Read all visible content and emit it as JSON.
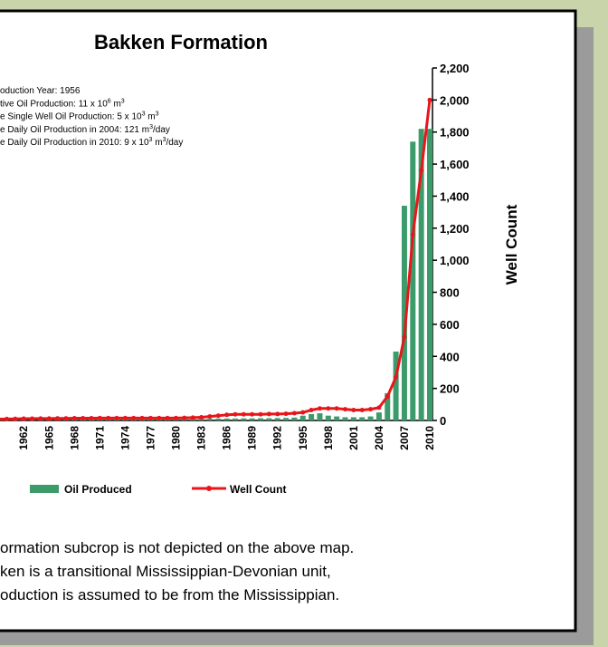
{
  "chart_data": {
    "type": "combo",
    "title": "Bakken Formation",
    "y_axis_label": "Well Count",
    "categories": [
      null,
      null,
      null,
      "1962",
      null,
      null,
      "1965",
      null,
      null,
      "1968",
      null,
      null,
      "1971",
      null,
      null,
      "1974",
      null,
      null,
      "1977",
      null,
      null,
      "1980",
      null,
      null,
      "1983",
      null,
      null,
      "1986",
      null,
      null,
      "1989",
      null,
      null,
      "1992",
      null,
      null,
      "1995",
      null,
      null,
      "1998",
      null,
      null,
      "2001",
      null,
      null,
      "2004",
      null,
      null,
      "2007",
      null,
      null,
      "2010"
    ],
    "series": [
      {
        "name": "Oil Produced",
        "type": "bar",
        "color": "#3c9b6b",
        "values": [
          0,
          0,
          2,
          3,
          3,
          4,
          4,
          5,
          5,
          6,
          6,
          6,
          7,
          7,
          7,
          8,
          8,
          8,
          9,
          9,
          9,
          10,
          10,
          10,
          11,
          11,
          12,
          12,
          12,
          13,
          13,
          14,
          14,
          15,
          16,
          18,
          30,
          40,
          45,
          30,
          25,
          20,
          20,
          20,
          25,
          50,
          170,
          430,
          1340,
          1740,
          1820,
          1820
        ]
      },
      {
        "name": "Well Count",
        "type": "line",
        "color": "#e8161b",
        "values": [
          8,
          9,
          10,
          11,
          11,
          12,
          12,
          13,
          13,
          14,
          14,
          14,
          15,
          15,
          15,
          15,
          15,
          15,
          15,
          15,
          15,
          15,
          16,
          18,
          20,
          25,
          30,
          35,
          38,
          38,
          38,
          38,
          40,
          40,
          42,
          45,
          50,
          65,
          75,
          75,
          75,
          70,
          65,
          65,
          70,
          80,
          150,
          270,
          520,
          1160,
          1560,
          2000
        ]
      }
    ],
    "ylim": [
      0,
      2200
    ],
    "yticks": [
      0,
      200,
      400,
      600,
      800,
      {
        "value": 1000,
        "label": "1,000"
      },
      {
        "value": 1200,
        "label": "1,200"
      },
      {
        "value": 1400,
        "label": "1,400"
      },
      {
        "value": 1600,
        "label": "1,600"
      },
      {
        "value": 1800,
        "label": "1,800"
      },
      {
        "value": 2000,
        "label": "2,000"
      },
      {
        "value": 2200,
        "label": "2,200"
      }
    ],
    "annotation": [
      [
        "oduction Year: 1956"
      ],
      [
        "tive Oil Production: 11 x 10",
        "6",
        " m",
        "3"
      ],
      [
        "e Single Well Oil Production: 5 x 10",
        "3",
        " m",
        "3"
      ],
      [
        "e Daily Oil Production in 2004: 121 m",
        "3",
        "/day"
      ],
      [
        "e Daily Oil Production in 2010: 9 x 10",
        "3",
        " m",
        "3",
        "/day"
      ]
    ],
    "caption": [
      "ormation subcrop is not depicted on the above map.",
      "ken is a transitional Mississippian-Devonian unit,",
      "oduction is assumed to be from the Mississippian."
    ]
  }
}
